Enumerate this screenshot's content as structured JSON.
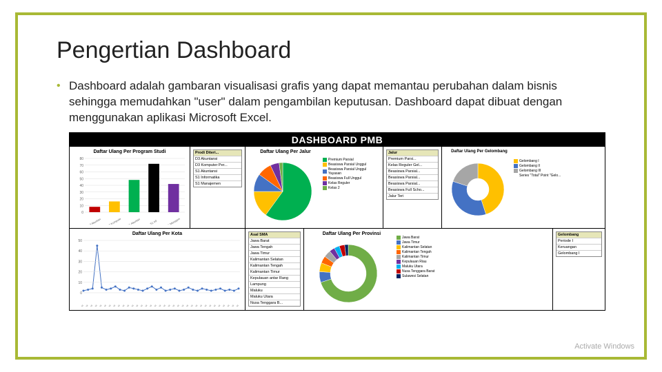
{
  "slide": {
    "title": "Pengertian Dashboard",
    "bullet": "Dashboard adalah gambaran visualisasi grafis yang dapat memantau perubahan dalam bisnis sehingga memudahkan \"user\" dalam pengambilan keputusan. Dashboard dapat dibuat dengan menggunakan aplikasi Microsoft Excel.",
    "border_color": "#a8b935"
  },
  "dashboard": {
    "title": "DASHBOARD PMB",
    "row1": {
      "bar_chart": {
        "title": "Daftar Ulang Per Program Studi",
        "bars": [
          {
            "label": "D3 Akuntansi",
            "value": 8,
            "color": "#c00000"
          },
          {
            "label": "D3 Komputer",
            "value": 16,
            "color": "#ffc000"
          },
          {
            "label": "S1 Akuntansi",
            "value": 48,
            "color": "#00b050"
          },
          {
            "label": "S1 Inf",
            "value": 72,
            "color": "#000000"
          },
          {
            "label": "S1 Manajemen",
            "value": 42,
            "color": "#7030a0"
          }
        ],
        "ymax": 80,
        "ytick": 10
      },
      "prodi_list": {
        "header": "Prodi Diteri...",
        "items": [
          "D3 Akuntansi",
          "D3 Komputer Per...",
          "S1 Akuntansi",
          "S1 Informatika",
          "S1 Manajemen"
        ]
      },
      "pie_chart": {
        "title": "Daftar Ulang Per Jalur",
        "slices": [
          {
            "label": "Premium Parsial",
            "value": 60,
            "color": "#00b050"
          },
          {
            "label": "Beasiswa Parsial Unggul",
            "value": 15,
            "color": "#ffc000"
          },
          {
            "label": "Beasiswa Parsial Unggul Yayasan",
            "value": 10,
            "color": "#4472c4"
          },
          {
            "label": "Beasiswa Full Unggul",
            "value": 8,
            "color": "#ff6600"
          },
          {
            "label": "Kelas Reguler",
            "value": 5,
            "color": "#7030a0"
          },
          {
            "label": "Kelas 2",
            "value": 2,
            "color": "#70ad47"
          }
        ]
      },
      "jalur_list": {
        "header": "Jalur",
        "items": [
          "Premium Parsi...",
          "Kelas Reguler Gel...",
          "Beasiswa Parsial...",
          "Beasiswa Parsial...",
          "Beasiswa Parsial...",
          "Beasiswa Full Scho...",
          "Jalur Teri"
        ]
      },
      "ring_chart": {
        "title": "Daftar Ulang Per Gelombang",
        "slices": [
          {
            "label": "Gelombang I",
            "value": 45,
            "color": "#ffc000"
          },
          {
            "label": "Gelombang II",
            "value": 35,
            "color": "#4472c4"
          },
          {
            "label": "Gelombang III",
            "value": 20,
            "color": "#a6a6a6"
          }
        ],
        "series_label": "Series \"Total\" Point \"Gelo..."
      }
    },
    "row2": {
      "line_chart": {
        "title": "Daftar Ulang Per Kota",
        "ymax": 50,
        "points": [
          2,
          3,
          4,
          45,
          5,
          3,
          4,
          6,
          3,
          2,
          5,
          4,
          3,
          2,
          4,
          6,
          3,
          5,
          2,
          3,
          4,
          2,
          3,
          5,
          3,
          2,
          4,
          3,
          2,
          3,
          4,
          2,
          3,
          2,
          4
        ],
        "line_color": "#4472c4"
      },
      "asal_list": {
        "header": "Asal SMA",
        "items": [
          "Jawa Barat",
          "Jawa Tengah",
          "Jawa Timur",
          "Kalimantan Selatan",
          "Kalimantan Tengah",
          "Kalimantan Timur",
          "Kepulauan antar Rang",
          "Lampung",
          "Maluku",
          "Maluku Utara",
          "Nusa Tenggara B..."
        ]
      },
      "donut_chart": {
        "title": "Daftar Ulang Per Provinsi",
        "slices": [
          {
            "label": "Jawa Barat",
            "value": 70,
            "color": "#70ad47"
          },
          {
            "label": "Jawa Timur",
            "value": 6,
            "color": "#4472c4"
          },
          {
            "label": "Kalimantan Selatan",
            "value": 5,
            "color": "#ffc000"
          },
          {
            "label": "Kalimantan Tengah",
            "value": 4,
            "color": "#ff6600"
          },
          {
            "label": "Kalimantan Timur",
            "value": 4,
            "color": "#a6a6a6"
          },
          {
            "label": "Kepulauan Riau",
            "value": 3,
            "color": "#7030a0"
          },
          {
            "label": "Maluku Utara",
            "value": 3,
            "color": "#00b0f0"
          },
          {
            "label": "Nusa Tenggara Barat",
            "value": 3,
            "color": "#c00000"
          },
          {
            "label": "Sulawesi Selatan",
            "value": 2,
            "color": "#002060"
          }
        ]
      },
      "gel_list": {
        "header": "Gelombang",
        "items": [
          "Periode I",
          "Keruangan",
          "Gelombang I"
        ]
      }
    }
  },
  "watermark": {
    "line1": "Activate Windows",
    "line2": "..."
  }
}
